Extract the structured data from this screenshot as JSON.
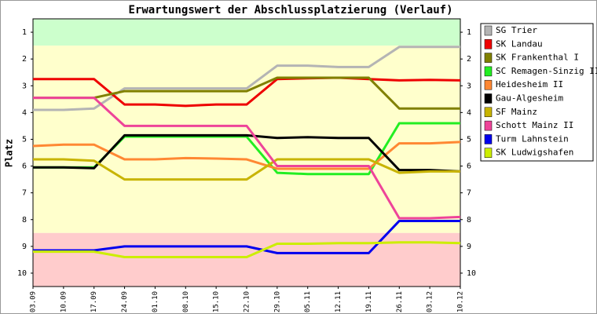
{
  "chart_data": {
    "type": "line",
    "title": "Erwartungswert der Abschlussplatzierung (Verlauf)",
    "y_label": "Platz",
    "categories": [
      "03.09",
      "10.09",
      "17.09",
      "24.09",
      "01.10",
      "08.10",
      "15.10",
      "22.10",
      "29.10",
      "05.11",
      "12.11",
      "19.11",
      "26.11",
      "03.12",
      "10.12"
    ],
    "ylim": [
      0.5,
      10.5
    ],
    "y_inverted": true,
    "yticks": [
      1,
      2,
      3,
      4,
      5,
      6,
      7,
      8,
      9,
      10
    ],
    "bands": [
      {
        "from": 0.5,
        "to": 1.5,
        "color": "#ccffcc"
      },
      {
        "from": 1.5,
        "to": 8.5,
        "color": "#ffffcc"
      },
      {
        "from": 8.5,
        "to": 10.5,
        "color": "#ffcccc"
      }
    ],
    "series": [
      {
        "name": "SG Trier",
        "color": "#b4b4b4",
        "values": [
          3.9,
          3.9,
          3.85,
          3.1,
          3.1,
          3.1,
          3.1,
          3.1,
          2.25,
          2.25,
          2.3,
          2.3,
          1.55,
          1.55,
          1.55
        ]
      },
      {
        "name": "SK Landau",
        "color": "#ee0000",
        "values": [
          2.75,
          2.75,
          2.75,
          3.7,
          3.7,
          3.75,
          3.7,
          3.7,
          2.75,
          2.72,
          2.7,
          2.75,
          2.8,
          2.78,
          2.8
        ]
      },
      {
        "name": "SK Frankenthal I",
        "color": "#808000",
        "values": [
          3.45,
          3.45,
          3.45,
          3.2,
          3.2,
          3.2,
          3.2,
          3.2,
          2.7,
          2.7,
          2.7,
          2.7,
          3.85,
          3.85,
          3.85
        ]
      },
      {
        "name": "SC Remagen-Sinzig II",
        "color": "#22ee22",
        "values": [
          6.05,
          6.05,
          6.05,
          4.9,
          4.9,
          4.9,
          4.9,
          4.9,
          6.25,
          6.3,
          6.3,
          6.3,
          4.4,
          4.4,
          4.4
        ]
      },
      {
        "name": "Heidesheim II",
        "color": "#ff8833",
        "values": [
          5.25,
          5.2,
          5.2,
          5.75,
          5.75,
          5.7,
          5.72,
          5.75,
          6.1,
          6.1,
          6.1,
          6.1,
          5.15,
          5.15,
          5.1
        ]
      },
      {
        "name": "Gau-Algesheim",
        "color": "#000000",
        "values": [
          6.05,
          6.05,
          6.08,
          4.85,
          4.85,
          4.85,
          4.85,
          4.85,
          4.95,
          4.92,
          4.95,
          4.95,
          6.15,
          6.15,
          6.2
        ]
      },
      {
        "name": "SF Mainz",
        "color": "#c8b400",
        "values": [
          5.75,
          5.75,
          5.8,
          6.5,
          6.5,
          6.5,
          6.5,
          6.5,
          5.75,
          5.75,
          5.75,
          5.75,
          6.25,
          6.2,
          6.2
        ]
      },
      {
        "name": "Schott Mainz II",
        "color": "#ee4499",
        "values": [
          3.45,
          3.45,
          3.45,
          4.5,
          4.5,
          4.5,
          4.5,
          4.5,
          6.0,
          6.0,
          6.0,
          6.0,
          7.95,
          7.95,
          7.9
        ]
      },
      {
        "name": "Turm Lahnstein",
        "color": "#0000ee",
        "values": [
          9.15,
          9.15,
          9.15,
          9.0,
          9.0,
          9.0,
          9.0,
          9.0,
          9.25,
          9.25,
          9.25,
          9.25,
          8.05,
          8.05,
          8.05
        ]
      },
      {
        "name": "SK Ludwigshafen",
        "color": "#ccee00",
        "values": [
          9.2,
          9.2,
          9.2,
          9.4,
          9.4,
          9.4,
          9.4,
          9.4,
          8.9,
          8.9,
          8.88,
          8.88,
          8.85,
          8.85,
          8.88
        ]
      }
    ]
  }
}
